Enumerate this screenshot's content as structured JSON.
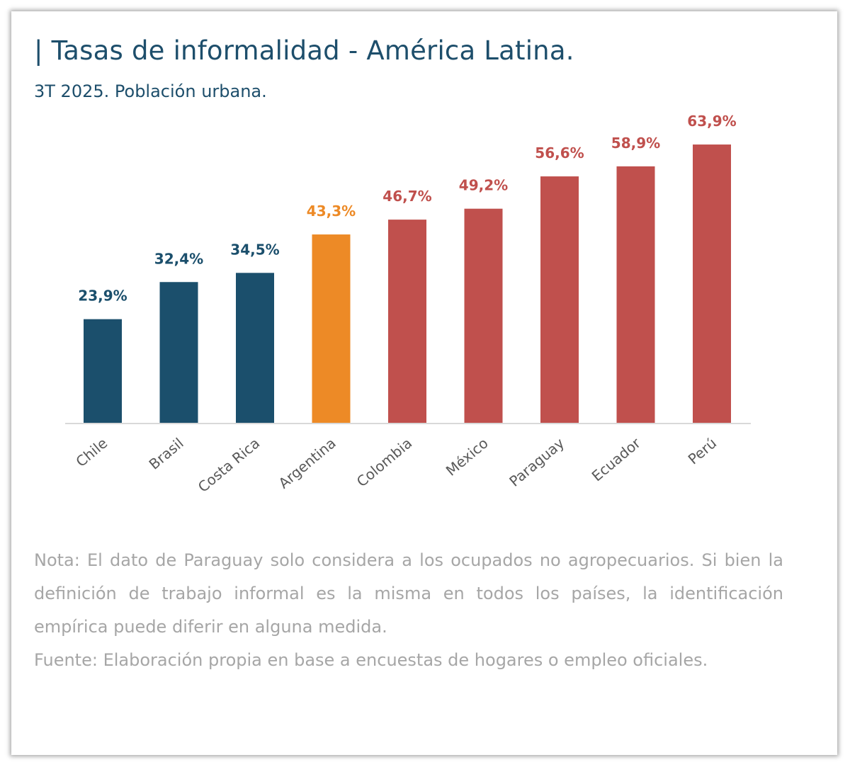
{
  "header": {
    "title": "| Tasas de informalidad - América Latina.",
    "subtitle": "3T 2025. Población urbana."
  },
  "chart_data": {
    "type": "bar",
    "title": "Tasas de informalidad - América Latina.",
    "subtitle": "3T 2025. Población urbana.",
    "xlabel": "",
    "ylabel": "",
    "categories": [
      "Chile",
      "Brasil",
      "Costa Rica",
      "Argentina",
      "Colombia",
      "México",
      "Paraguay",
      "Ecuador",
      "Perú"
    ],
    "values": [
      23.9,
      32.4,
      34.5,
      43.3,
      46.7,
      49.2,
      56.6,
      58.9,
      63.9
    ],
    "value_labels": [
      "23,9%",
      "32,4%",
      "34,5%",
      "43,3%",
      "46,7%",
      "49,2%",
      "56,6%",
      "58,9%",
      "63,9%"
    ],
    "unit": "%",
    "ylim": [
      0,
      70
    ],
    "grid": false,
    "legend": "none",
    "bar_colors": [
      "#1b4f6c",
      "#1b4f6c",
      "#1b4f6c",
      "#ed8a26",
      "#c0504d",
      "#c0504d",
      "#c0504d",
      "#c0504d",
      "#c0504d"
    ],
    "colors": {
      "group_low": "#1b4f6c",
      "highlight": "#ed8a26",
      "group_high": "#c0504d",
      "axis": "#d9d9d9",
      "category_text": "#595959"
    }
  },
  "notes": {
    "nota": "Nota: El dato de Paraguay solo considera a los ocupados no agropecuarios. Si bien la definición de trabajo informal es la misma en todos los países, la identificación empírica puede diferir en alguna medida.",
    "fuente": "Fuente: Elaboración propia en base a encuestas de hogares o empleo oficiales."
  }
}
